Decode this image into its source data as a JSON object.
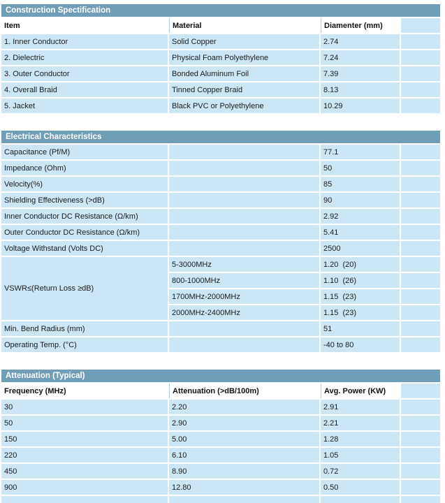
{
  "document": {
    "kind": "coaxial-cable-specification-sheet"
  },
  "colors": {
    "title_bar_bg": "#6f9eb8",
    "title_text": "#ffffff",
    "row_bg": "#cce6f6",
    "header_bg": "#ffffff",
    "header_divider": "#a6cde2",
    "body_text": "#1b1b1b",
    "page_bg": "#ffffff"
  },
  "tables": [
    {
      "title": "Construction Spectification",
      "columns": [
        "Item",
        "Material",
        "Diamenter (mm)"
      ],
      "rows": [
        [
          "1. Inner Conductor",
          "Solid Copper",
          "2.74"
        ],
        [
          "2. Dielectric",
          "Physical Foam Polyethylene",
          "7.24"
        ],
        [
          "3. Outer Conductor",
          "Bonded Aluminum Foil",
          "7.39"
        ],
        [
          "4. Overall Braid",
          "Tinned Copper Braid",
          "8.13"
        ],
        [
          "5. Jacket",
          "Black PVC or Polyethylene",
          "10.29"
        ]
      ]
    },
    {
      "title": "Electrical Characteristics",
      "rows": [
        [
          "Capacitance (Pf/M)",
          "",
          "77.1"
        ],
        [
          "Impedance (Ohm)",
          "",
          "50"
        ],
        [
          "Velocity(%)",
          "",
          "85"
        ],
        [
          "Shielding Effectiveness (>dB)",
          "",
          "90"
        ],
        [
          "Inner Conductor DC Resistance (Ω/km)",
          "",
          "2.92"
        ],
        [
          "Outer Conductor DC Resistance (Ω/km)",
          "",
          "5.41"
        ],
        [
          "Voltage Withstand (Volts DC)",
          "",
          "2500"
        ]
      ],
      "vswr": {
        "label": "VSWR≤(Return Loss ≥dB)",
        "sub_rows": [
          [
            "5-3000MHz",
            "1.20  (20)"
          ],
          [
            "800-1000MHz",
            "1.10  (26)"
          ],
          [
            "1700MHz-2000MHz",
            "1.15  (23)"
          ],
          [
            "2000MHz-2400MHz",
            "1.15  (23)"
          ]
        ]
      },
      "rows_after": [
        [
          "Min. Bend Radius (mm)",
          "",
          "51"
        ],
        [
          "Operating Temp. (°C)",
          "",
          "-40 to 80"
        ]
      ]
    },
    {
      "title": "Attenuation (Typical)",
      "columns": [
        "Frequency (MHz)",
        "Attenuation (>dB/100m)",
        "Avg. Power (KW)"
      ],
      "rows": [
        [
          "30",
          "2.20",
          "2.91"
        ],
        [
          "50",
          "2.90",
          "2.21"
        ],
        [
          "150",
          "5.00",
          "1.28"
        ],
        [
          "220",
          "6.10",
          "1.05"
        ],
        [
          "450",
          "8.90",
          "0.72"
        ],
        [
          "900",
          "12.80",
          "0.50"
        ]
      ],
      "cutoff_row_visible": true
    }
  ]
}
